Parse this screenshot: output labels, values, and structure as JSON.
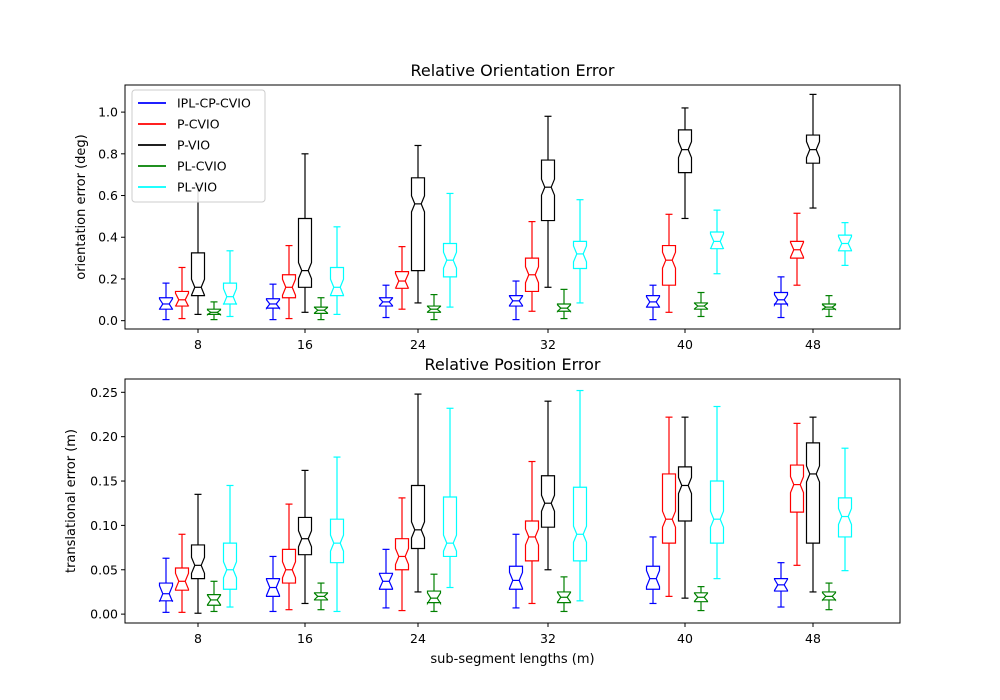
{
  "chart_data": [
    {
      "type": "boxplot",
      "title": "Relative Orientation Error",
      "ylabel": "orientation error (deg)",
      "xlabel": "",
      "ylim": [
        -0.04,
        1.13
      ],
      "yticks": [
        "0.0",
        "0.2",
        "0.4",
        "0.6",
        "0.8",
        "1.0"
      ],
      "categories": [
        "8",
        "16",
        "24",
        "32",
        "40",
        "48"
      ],
      "legend": "top-left",
      "series": [
        {
          "name": "IPL-CP-CVIO",
          "color": "#0000ff",
          "boxes": [
            {
              "whislo": 0.005,
              "q1": 0.055,
              "med": 0.08,
              "q3": 0.11,
              "whishi": 0.18
            },
            {
              "whislo": 0.005,
              "q1": 0.06,
              "med": 0.08,
              "q3": 0.105,
              "whishi": 0.175
            },
            {
              "whislo": 0.015,
              "q1": 0.07,
              "med": 0.09,
              "q3": 0.11,
              "whishi": 0.17
            },
            {
              "whislo": 0.005,
              "q1": 0.07,
              "med": 0.095,
              "q3": 0.12,
              "whishi": 0.19
            },
            {
              "whislo": 0.005,
              "q1": 0.065,
              "med": 0.09,
              "q3": 0.12,
              "whishi": 0.17
            },
            {
              "whislo": 0.015,
              "q1": 0.08,
              "med": 0.1,
              "q3": 0.135,
              "whishi": 0.21
            }
          ]
        },
        {
          "name": "P-CVIO",
          "color": "#ff0000",
          "boxes": [
            {
              "whislo": 0.01,
              "q1": 0.07,
              "med": 0.1,
              "q3": 0.14,
              "whishi": 0.255
            },
            {
              "whislo": 0.01,
              "q1": 0.11,
              "med": 0.16,
              "q3": 0.22,
              "whishi": 0.36
            },
            {
              "whislo": 0.055,
              "q1": 0.155,
              "med": 0.19,
              "q3": 0.235,
              "whishi": 0.355
            },
            {
              "whislo": 0.045,
              "q1": 0.14,
              "med": 0.22,
              "q3": 0.3,
              "whishi": 0.475
            },
            {
              "whislo": 0.04,
              "q1": 0.17,
              "med": 0.29,
              "q3": 0.36,
              "whishi": 0.51
            },
            {
              "whislo": 0.17,
              "q1": 0.3,
              "med": 0.34,
              "q3": 0.38,
              "whishi": 0.515
            }
          ]
        },
        {
          "name": "P-VIO",
          "color": "#000000",
          "boxes": [
            {
              "whislo": 0.03,
              "q1": 0.12,
              "med": 0.16,
              "q3": 0.325,
              "whishi": 0.65
            },
            {
              "whislo": 0.04,
              "q1": 0.16,
              "med": 0.24,
              "q3": 0.49,
              "whishi": 0.8
            },
            {
              "whislo": 0.085,
              "q1": 0.24,
              "med": 0.56,
              "q3": 0.685,
              "whishi": 0.84
            },
            {
              "whislo": 0.16,
              "q1": 0.48,
              "med": 0.64,
              "q3": 0.77,
              "whishi": 0.98
            },
            {
              "whislo": 0.49,
              "q1": 0.71,
              "med": 0.82,
              "q3": 0.915,
              "whishi": 1.02
            },
            {
              "whislo": 0.54,
              "q1": 0.755,
              "med": 0.82,
              "q3": 0.89,
              "whishi": 1.085
            }
          ]
        },
        {
          "name": "PL-CVIO",
          "color": "#008000",
          "boxes": [
            {
              "whislo": 0.005,
              "q1": 0.03,
              "med": 0.04,
              "q3": 0.055,
              "whishi": 0.09
            },
            {
              "whislo": 0.005,
              "q1": 0.035,
              "med": 0.05,
              "q3": 0.065,
              "whishi": 0.11
            },
            {
              "whislo": 0.005,
              "q1": 0.04,
              "med": 0.055,
              "q3": 0.07,
              "whishi": 0.125
            },
            {
              "whislo": 0.01,
              "q1": 0.045,
              "med": 0.06,
              "q3": 0.08,
              "whishi": 0.15
            },
            {
              "whislo": 0.02,
              "q1": 0.055,
              "med": 0.07,
              "q3": 0.085,
              "whishi": 0.135
            },
            {
              "whislo": 0.02,
              "q1": 0.055,
              "med": 0.065,
              "q3": 0.08,
              "whishi": 0.12
            }
          ]
        },
        {
          "name": "PL-VIO",
          "color": "#00ffff",
          "boxes": [
            {
              "whislo": 0.02,
              "q1": 0.08,
              "med": 0.115,
              "q3": 0.18,
              "whishi": 0.335
            },
            {
              "whislo": 0.03,
              "q1": 0.12,
              "med": 0.16,
              "q3": 0.255,
              "whishi": 0.45
            },
            {
              "whislo": 0.065,
              "q1": 0.21,
              "med": 0.29,
              "q3": 0.37,
              "whishi": 0.61
            },
            {
              "whislo": 0.085,
              "q1": 0.25,
              "med": 0.32,
              "q3": 0.38,
              "whishi": 0.58
            },
            {
              "whislo": 0.225,
              "q1": 0.345,
              "med": 0.38,
              "q3": 0.425,
              "whishi": 0.53
            },
            {
              "whislo": 0.265,
              "q1": 0.335,
              "med": 0.37,
              "q3": 0.41,
              "whishi": 0.47
            }
          ]
        }
      ]
    },
    {
      "type": "boxplot",
      "title": "Relative Position Error",
      "ylabel": "translational error (m)",
      "xlabel": "sub-segment lengths (m)",
      "ylim": [
        -0.01,
        0.265
      ],
      "yticks": [
        "0.00",
        "0.05",
        "0.10",
        "0.15",
        "0.20",
        "0.25"
      ],
      "categories": [
        "8",
        "16",
        "24",
        "32",
        "40",
        "48"
      ],
      "legend": "none",
      "series": [
        {
          "name": "IPL-CP-CVIO",
          "color": "#0000ff",
          "boxes": [
            {
              "whislo": 0.002,
              "q1": 0.015,
              "med": 0.023,
              "q3": 0.035,
              "whishi": 0.063
            },
            {
              "whislo": 0.003,
              "q1": 0.02,
              "med": 0.03,
              "q3": 0.04,
              "whishi": 0.065
            },
            {
              "whislo": 0.007,
              "q1": 0.028,
              "med": 0.037,
              "q3": 0.046,
              "whishi": 0.073
            },
            {
              "whislo": 0.007,
              "q1": 0.028,
              "med": 0.038,
              "q3": 0.054,
              "whishi": 0.09
            },
            {
              "whislo": 0.012,
              "q1": 0.028,
              "med": 0.04,
              "q3": 0.054,
              "whishi": 0.087
            },
            {
              "whislo": 0.008,
              "q1": 0.026,
              "med": 0.033,
              "q3": 0.04,
              "whishi": 0.058
            }
          ]
        },
        {
          "name": "P-CVIO",
          "color": "#ff0000",
          "boxes": [
            {
              "whislo": 0.002,
              "q1": 0.027,
              "med": 0.037,
              "q3": 0.052,
              "whishi": 0.09
            },
            {
              "whislo": 0.005,
              "q1": 0.035,
              "med": 0.05,
              "q3": 0.073,
              "whishi": 0.124
            },
            {
              "whislo": 0.004,
              "q1": 0.05,
              "med": 0.065,
              "q3": 0.085,
              "whishi": 0.131
            },
            {
              "whislo": 0.012,
              "q1": 0.06,
              "med": 0.087,
              "q3": 0.105,
              "whishi": 0.172
            },
            {
              "whislo": 0.02,
              "q1": 0.08,
              "med": 0.107,
              "q3": 0.158,
              "whishi": 0.222
            },
            {
              "whislo": 0.055,
              "q1": 0.115,
              "med": 0.146,
              "q3": 0.168,
              "whishi": 0.215
            }
          ]
        },
        {
          "name": "P-VIO",
          "color": "#000000",
          "boxes": [
            {
              "whislo": 0.001,
              "q1": 0.04,
              "med": 0.055,
              "q3": 0.078,
              "whishi": 0.135
            },
            {
              "whislo": 0.012,
              "q1": 0.067,
              "med": 0.085,
              "q3": 0.109,
              "whishi": 0.162
            },
            {
              "whislo": 0.025,
              "q1": 0.074,
              "med": 0.095,
              "q3": 0.145,
              "whishi": 0.248
            },
            {
              "whislo": 0.05,
              "q1": 0.098,
              "med": 0.125,
              "q3": 0.156,
              "whishi": 0.24
            },
            {
              "whislo": 0.018,
              "q1": 0.105,
              "med": 0.145,
              "q3": 0.166,
              "whishi": 0.222
            },
            {
              "whislo": 0.025,
              "q1": 0.08,
              "med": 0.158,
              "q3": 0.193,
              "whishi": 0.222
            }
          ]
        },
        {
          "name": "PL-CVIO",
          "color": "#008000",
          "boxes": [
            {
              "whislo": 0.003,
              "q1": 0.01,
              "med": 0.016,
              "q3": 0.022,
              "whishi": 0.037
            },
            {
              "whislo": 0.005,
              "q1": 0.016,
              "med": 0.02,
              "q3": 0.024,
              "whishi": 0.035
            },
            {
              "whislo": 0.003,
              "q1": 0.013,
              "med": 0.018,
              "q3": 0.026,
              "whishi": 0.045
            },
            {
              "whislo": 0.003,
              "q1": 0.013,
              "med": 0.019,
              "q3": 0.025,
              "whishi": 0.042
            },
            {
              "whislo": 0.004,
              "q1": 0.014,
              "med": 0.019,
              "q3": 0.024,
              "whishi": 0.031
            },
            {
              "whislo": 0.005,
              "q1": 0.016,
              "med": 0.02,
              "q3": 0.025,
              "whishi": 0.035
            }
          ]
        },
        {
          "name": "PL-VIO",
          "color": "#00ffff",
          "boxes": [
            {
              "whislo": 0.008,
              "q1": 0.028,
              "med": 0.05,
              "q3": 0.08,
              "whishi": 0.145
            },
            {
              "whislo": 0.003,
              "q1": 0.058,
              "med": 0.08,
              "q3": 0.107,
              "whishi": 0.177
            },
            {
              "whislo": 0.03,
              "q1": 0.065,
              "med": 0.08,
              "q3": 0.132,
              "whishi": 0.232
            },
            {
              "whislo": 0.015,
              "q1": 0.06,
              "med": 0.09,
              "q3": 0.143,
              "whishi": 0.252
            },
            {
              "whislo": 0.04,
              "q1": 0.08,
              "med": 0.107,
              "q3": 0.15,
              "whishi": 0.234
            },
            {
              "whislo": 0.049,
              "q1": 0.087,
              "med": 0.11,
              "q3": 0.131,
              "whishi": 0.187
            }
          ]
        }
      ]
    }
  ]
}
